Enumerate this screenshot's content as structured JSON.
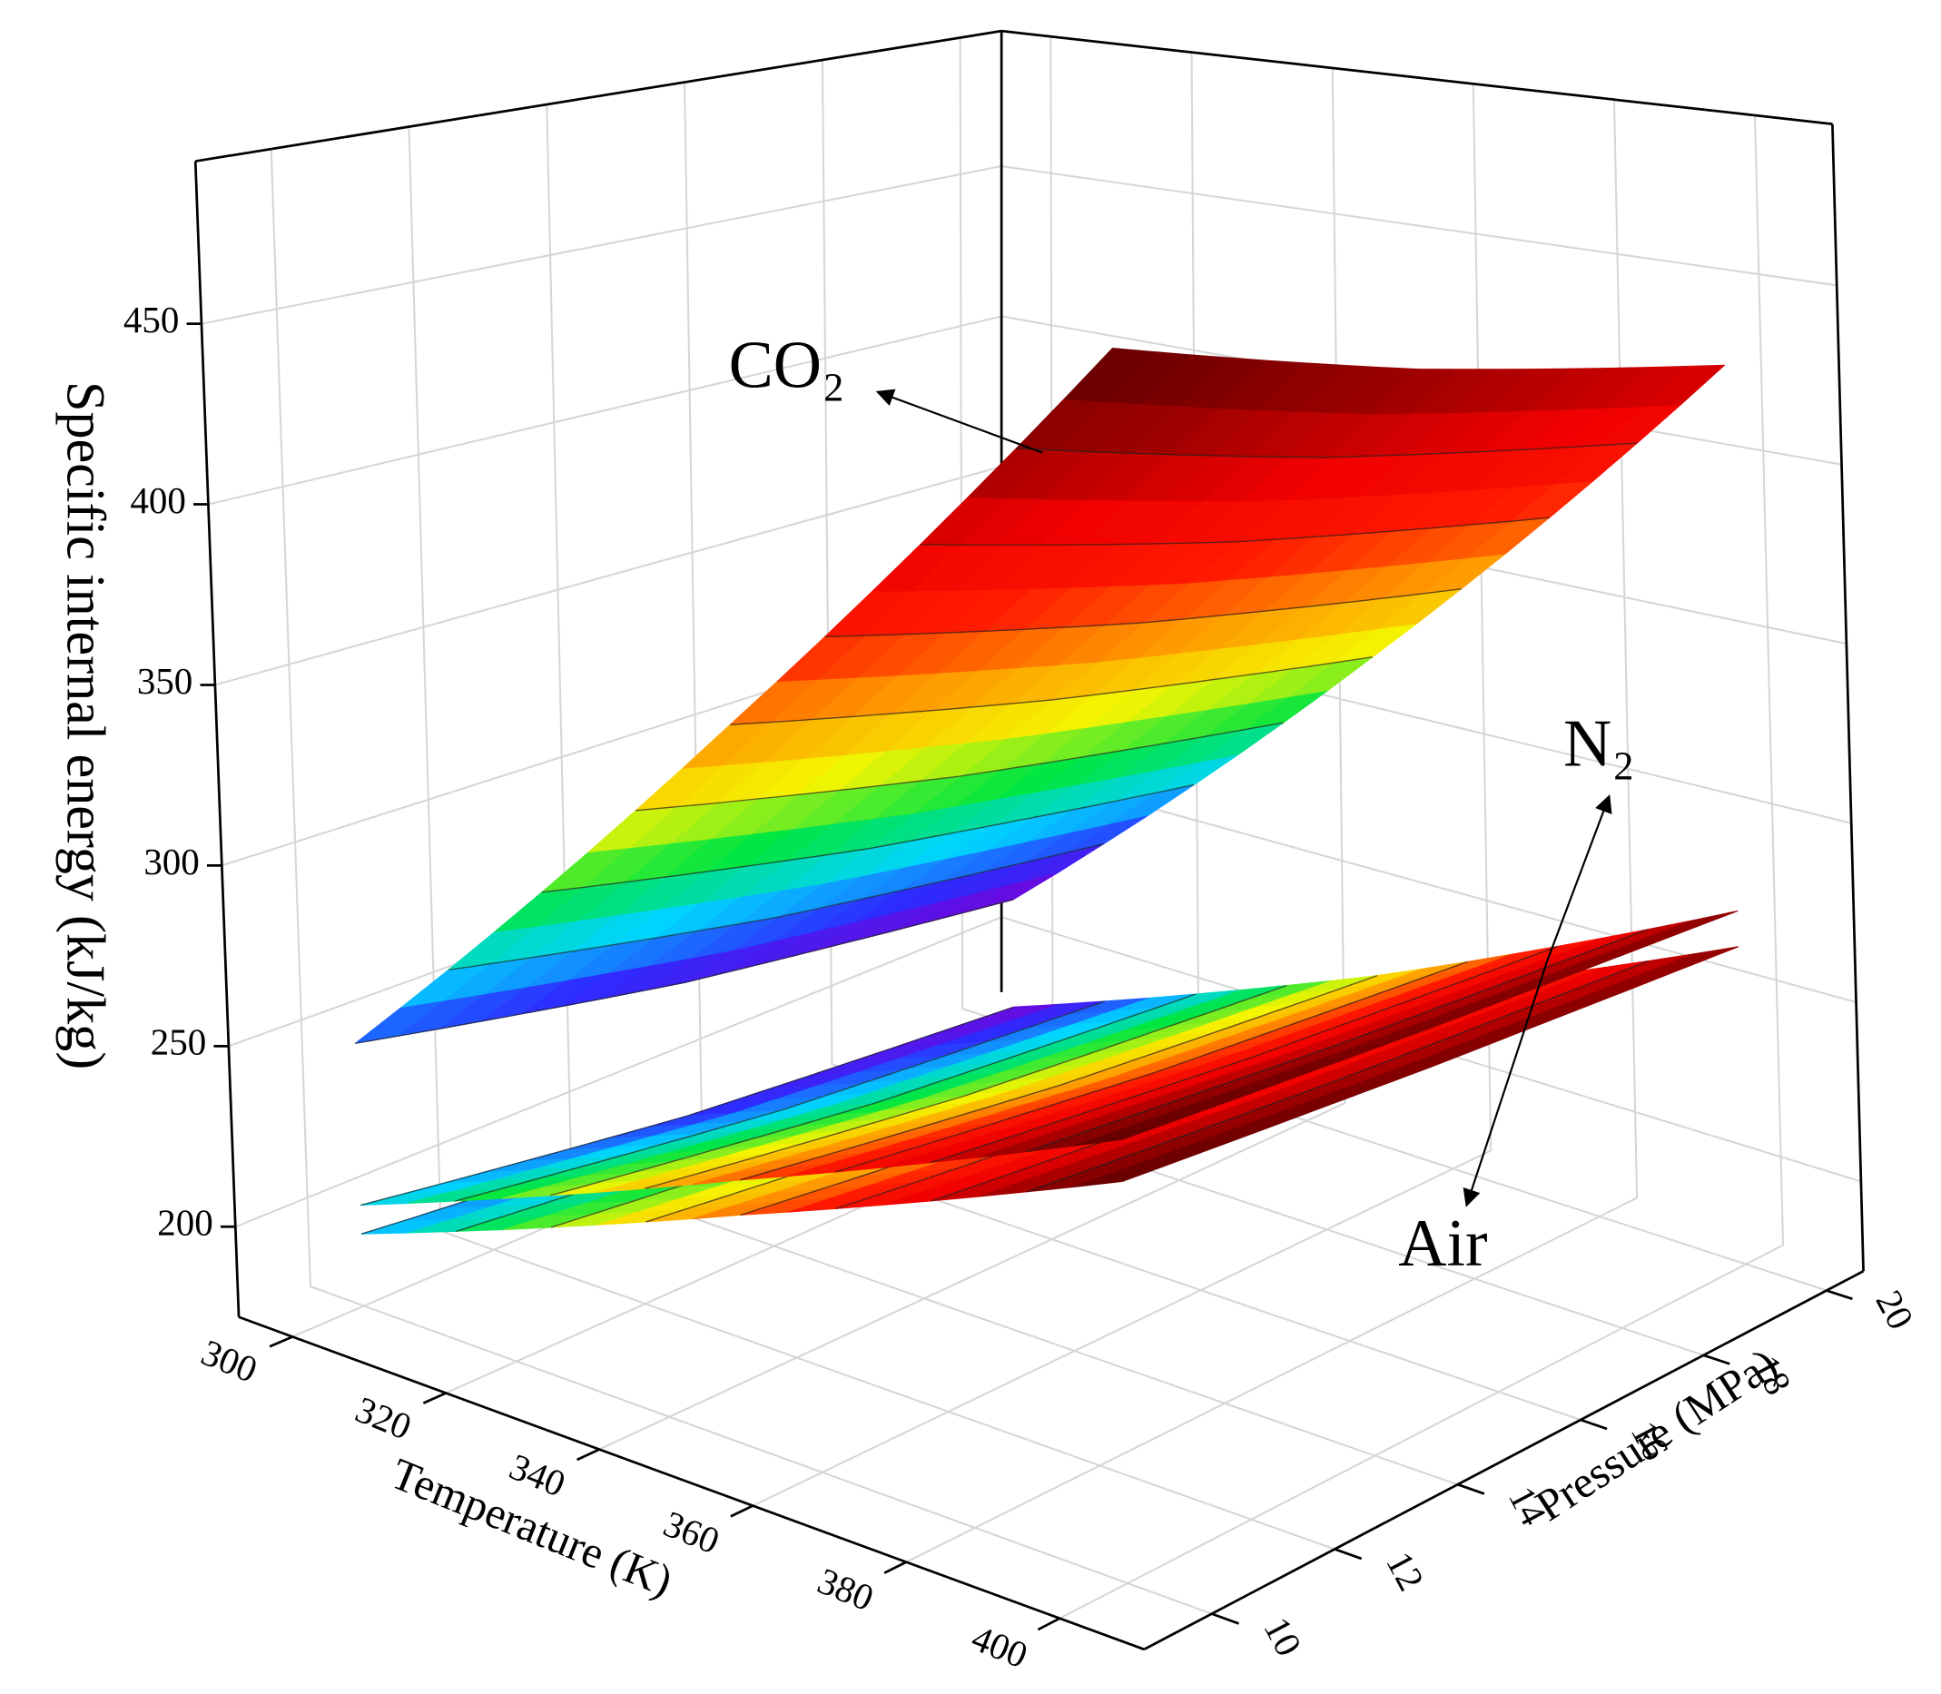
{
  "chart_data": {
    "type": "surface3d",
    "x_label": "Temperature (K)",
    "y_label": "Pressure (MPa)",
    "z_label": "Specific internal energy (kJ/kg)",
    "x": [
      300,
      350,
      400
    ],
    "y": [
      10,
      15,
      20
    ],
    "xlim": [
      293,
      411
    ],
    "ylim": [
      8.9,
      20.6
    ],
    "zlim": [
      175,
      495
    ],
    "xticks": [
      300,
      320,
      340,
      360,
      380,
      400
    ],
    "yticks": [
      10,
      12,
      14,
      16,
      18,
      20
    ],
    "zticks": [
      200,
      250,
      300,
      350,
      400,
      450
    ],
    "grid": true,
    "colormap": [
      "#7a00d6",
      "#2c2cff",
      "#00d4ff",
      "#00e640",
      "#f5f500",
      "#ff9900",
      "#ff1a00",
      "#f00000",
      "#9a0000",
      "#5a0000"
    ],
    "series": [
      {
        "name": "Air",
        "values": [
          [
            195,
            186,
            177
          ],
          [
            234,
            226,
            220
          ],
          [
            271,
            267,
            264
          ]
        ]
      },
      {
        "name": "N₂",
        "values": [
          [
            203,
            190,
            181
          ],
          [
            243,
            233,
            226
          ],
          [
            281,
            277,
            274
          ]
        ]
      },
      {
        "name": "CO₂",
        "values": [
          [
            248,
            230,
            216
          ],
          [
            360,
            340,
            322
          ],
          [
            470,
            447,
            427
          ]
        ]
      }
    ]
  }
}
